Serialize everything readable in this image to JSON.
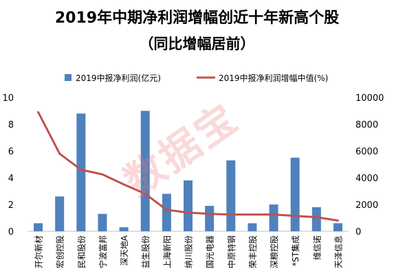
{
  "title": "2019年中期净利润增幅创近十年新高个股",
  "subtitle": "（同比增幅居前）",
  "watermark": "数据宝",
  "chart_data": {
    "type": "bar",
    "categories": [
      "开尔新材",
      "宏创控股",
      "民和股份",
      "宁波富邦",
      "深天地A",
      "益生股份",
      "上海新阳",
      "纳川股份",
      "国光电器",
      "中原特钢",
      "荣丰控股",
      "深粮控股",
      "*ST集成",
      "维信诺",
      "天泽信息"
    ],
    "series": [
      {
        "name": "2019中报净利润(亿元)",
        "type": "bar",
        "axis": "left",
        "color": "#4F81BD",
        "values": [
          0.6,
          2.6,
          8.8,
          1.3,
          0.3,
          9.0,
          2.8,
          3.8,
          1.9,
          5.3,
          0.6,
          2.0,
          5.5,
          1.8,
          0.6
        ]
      },
      {
        "name": "2019中报净利润增幅中值(%)",
        "type": "line",
        "axis": "right",
        "color": "#C0504D",
        "values": [
          8900,
          5800,
          4600,
          4250,
          3500,
          2800,
          1600,
          1400,
          1300,
          1250,
          1250,
          1250,
          1150,
          1050,
          800
        ]
      }
    ],
    "y_left": {
      "min": 0,
      "max": 10,
      "ticks": [
        0,
        2,
        4,
        6,
        8,
        10
      ]
    },
    "y_right": {
      "min": 0,
      "max": 10000,
      "ticks": [
        0,
        2000,
        4000,
        6000,
        8000,
        10000
      ]
    },
    "legend_position": "top"
  }
}
